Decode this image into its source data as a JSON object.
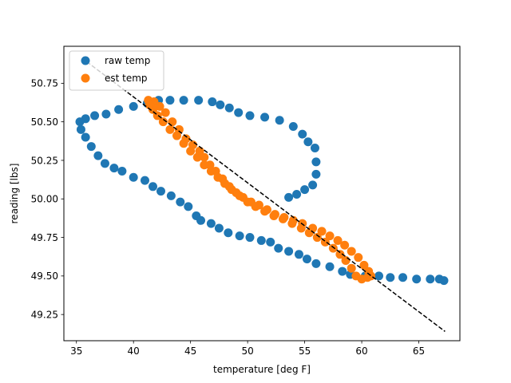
{
  "chart_data": {
    "type": "scatter",
    "title": "",
    "xlabel": "temperature [deg F]",
    "ylabel": "reading [lbs]",
    "xlim": [
      33.9,
      68.6
    ],
    "ylim": [
      49.08,
      50.99
    ],
    "xticks": [
      35,
      40,
      45,
      50,
      55,
      60,
      65
    ],
    "yticks": [
      49.25,
      49.5,
      49.75,
      50.0,
      50.25,
      50.5,
      50.75
    ],
    "ytick_labels": [
      "49.25",
      "49.50",
      "49.75",
      "50.00",
      "50.25",
      "50.50",
      "50.75"
    ],
    "legend": {
      "placement": "upper-left"
    },
    "series": [
      {
        "name": "raw temp",
        "kind": "scatter",
        "color": "#1f77b4",
        "points": [
          [
            53.6,
            50.01
          ],
          [
            54.3,
            50.03
          ],
          [
            55.0,
            50.06
          ],
          [
            55.7,
            50.09
          ],
          [
            56.0,
            50.16
          ],
          [
            56.0,
            50.24
          ],
          [
            55.9,
            50.33
          ],
          [
            55.3,
            50.37
          ],
          [
            54.8,
            50.42
          ],
          [
            54.0,
            50.47
          ],
          [
            52.8,
            50.51
          ],
          [
            51.5,
            50.53
          ],
          [
            50.2,
            50.54
          ],
          [
            49.2,
            50.56
          ],
          [
            48.4,
            50.59
          ],
          [
            47.6,
            50.61
          ],
          [
            46.9,
            50.63
          ],
          [
            45.7,
            50.64
          ],
          [
            44.4,
            50.64
          ],
          [
            43.2,
            50.64
          ],
          [
            42.2,
            50.64
          ],
          [
            41.2,
            50.62
          ],
          [
            40.0,
            50.6
          ],
          [
            38.7,
            50.58
          ],
          [
            37.6,
            50.55
          ],
          [
            36.6,
            50.54
          ],
          [
            35.8,
            50.52
          ],
          [
            35.3,
            50.5
          ],
          [
            35.4,
            50.45
          ],
          [
            35.8,
            50.4
          ],
          [
            36.3,
            50.34
          ],
          [
            36.9,
            50.28
          ],
          [
            37.5,
            50.23
          ],
          [
            38.3,
            50.2
          ],
          [
            39.0,
            50.18
          ],
          [
            40.0,
            50.14
          ],
          [
            41.0,
            50.12
          ],
          [
            41.7,
            50.08
          ],
          [
            42.4,
            50.05
          ],
          [
            43.3,
            50.02
          ],
          [
            44.1,
            49.98
          ],
          [
            44.8,
            49.95
          ],
          [
            45.5,
            49.89
          ],
          [
            45.9,
            49.86
          ],
          [
            46.8,
            49.84
          ],
          [
            47.5,
            49.81
          ],
          [
            48.3,
            49.78
          ],
          [
            49.3,
            49.76
          ],
          [
            50.2,
            49.75
          ],
          [
            51.2,
            49.73
          ],
          [
            52.0,
            49.72
          ],
          [
            52.7,
            49.68
          ],
          [
            53.6,
            49.66
          ],
          [
            54.5,
            49.64
          ],
          [
            55.2,
            49.61
          ],
          [
            56.0,
            49.58
          ],
          [
            57.2,
            49.56
          ],
          [
            58.3,
            49.53
          ],
          [
            59.0,
            49.51
          ],
          [
            60.3,
            49.5
          ],
          [
            61.5,
            49.5
          ],
          [
            62.5,
            49.49
          ],
          [
            63.6,
            49.49
          ],
          [
            64.8,
            49.48
          ],
          [
            66.0,
            49.48
          ],
          [
            66.8,
            49.48
          ],
          [
            67.2,
            49.47
          ]
        ]
      },
      {
        "name": "est temp",
        "kind": "scatter",
        "color": "#ff7f0e",
        "points": [
          [
            41.3,
            50.64
          ],
          [
            41.8,
            50.63
          ],
          [
            42.3,
            50.6
          ],
          [
            42.8,
            50.56
          ],
          [
            43.4,
            50.5
          ],
          [
            44.0,
            50.45
          ],
          [
            44.6,
            50.39
          ],
          [
            45.2,
            50.35
          ],
          [
            45.8,
            50.31
          ],
          [
            46.2,
            50.27
          ],
          [
            46.7,
            50.22
          ],
          [
            47.2,
            50.18
          ],
          [
            47.8,
            50.13
          ],
          [
            48.4,
            50.08
          ],
          [
            49.0,
            50.04
          ],
          [
            49.6,
            50.01
          ],
          [
            50.3,
            49.98
          ],
          [
            51.0,
            49.96
          ],
          [
            51.7,
            49.93
          ],
          [
            52.4,
            49.9
          ],
          [
            53.2,
            49.88
          ],
          [
            54.0,
            49.86
          ],
          [
            54.8,
            49.84
          ],
          [
            55.7,
            49.81
          ],
          [
            56.5,
            49.79
          ],
          [
            57.2,
            49.76
          ],
          [
            57.9,
            49.73
          ],
          [
            58.5,
            49.7
          ],
          [
            59.1,
            49.66
          ],
          [
            59.7,
            49.62
          ],
          [
            60.2,
            49.57
          ],
          [
            60.6,
            49.53
          ],
          [
            60.8,
            49.5
          ],
          [
            60.5,
            49.49
          ],
          [
            60.0,
            49.48
          ],
          [
            59.5,
            49.5
          ],
          [
            59.1,
            49.55
          ],
          [
            58.6,
            49.6
          ],
          [
            58.1,
            49.64
          ],
          [
            57.5,
            49.68
          ],
          [
            56.8,
            49.72
          ],
          [
            56.1,
            49.75
          ],
          [
            55.4,
            49.78
          ],
          [
            54.7,
            49.81
          ],
          [
            53.9,
            49.84
          ],
          [
            53.1,
            49.87
          ],
          [
            52.3,
            49.89
          ],
          [
            51.5,
            49.92
          ],
          [
            50.7,
            49.95
          ],
          [
            50.0,
            49.98
          ],
          [
            49.3,
            50.02
          ],
          [
            48.6,
            50.06
          ],
          [
            48.0,
            50.1
          ],
          [
            47.4,
            50.14
          ],
          [
            46.8,
            50.18
          ],
          [
            46.2,
            50.22
          ],
          [
            45.6,
            50.27
          ],
          [
            45.0,
            50.31
          ],
          [
            44.4,
            50.36
          ],
          [
            43.8,
            50.41
          ],
          [
            43.2,
            50.45
          ],
          [
            42.6,
            50.5
          ],
          [
            42.1,
            50.54
          ],
          [
            41.7,
            50.58
          ],
          [
            41.4,
            50.61
          ]
        ]
      },
      {
        "name": "",
        "kind": "fit-line",
        "color": "#000000",
        "points": [
          [
            35.9,
            50.89
          ],
          [
            67.3,
            49.14
          ]
        ]
      }
    ]
  }
}
